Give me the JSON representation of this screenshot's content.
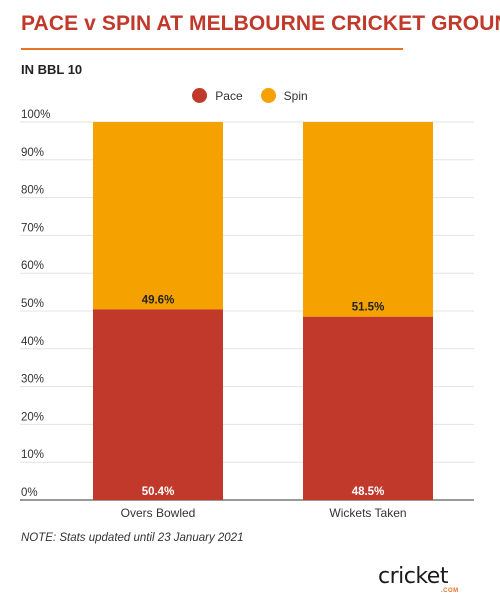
{
  "header": {
    "title": "PACE v SPIN AT MELBOURNE CRICKET GROUND",
    "subtitle": "IN BBL 10"
  },
  "colors": {
    "pace": "#c0392b",
    "spin": "#f5a200",
    "title": "#c0392b",
    "rule": "#e8732a"
  },
  "chart_data": {
    "type": "bar",
    "stacked": true,
    "title": "PACE v SPIN AT MELBOURNE CRICKET GROUND",
    "subtitle": "IN BBL 10",
    "categories": [
      "Overs Bowled",
      "Wickets Taken"
    ],
    "series": [
      {
        "name": "Pace",
        "values": [
          50.4,
          48.5
        ],
        "labels": [
          "50.4%",
          "48.5%"
        ]
      },
      {
        "name": "Spin",
        "values": [
          49.6,
          51.5
        ],
        "labels": [
          "49.6%",
          "51.5%"
        ]
      }
    ],
    "yticks": [
      "0%",
      "10%",
      "20%",
      "30%",
      "40%",
      "50%",
      "60%",
      "70%",
      "80%",
      "90%",
      "100%"
    ],
    "ylim": [
      0,
      100
    ],
    "grid": true,
    "legend": "top-center"
  },
  "footer": {
    "note": "NOTE: Stats updated until 23 January 2021",
    "logo_text": "cricket",
    "logo_sub": ".COM"
  }
}
